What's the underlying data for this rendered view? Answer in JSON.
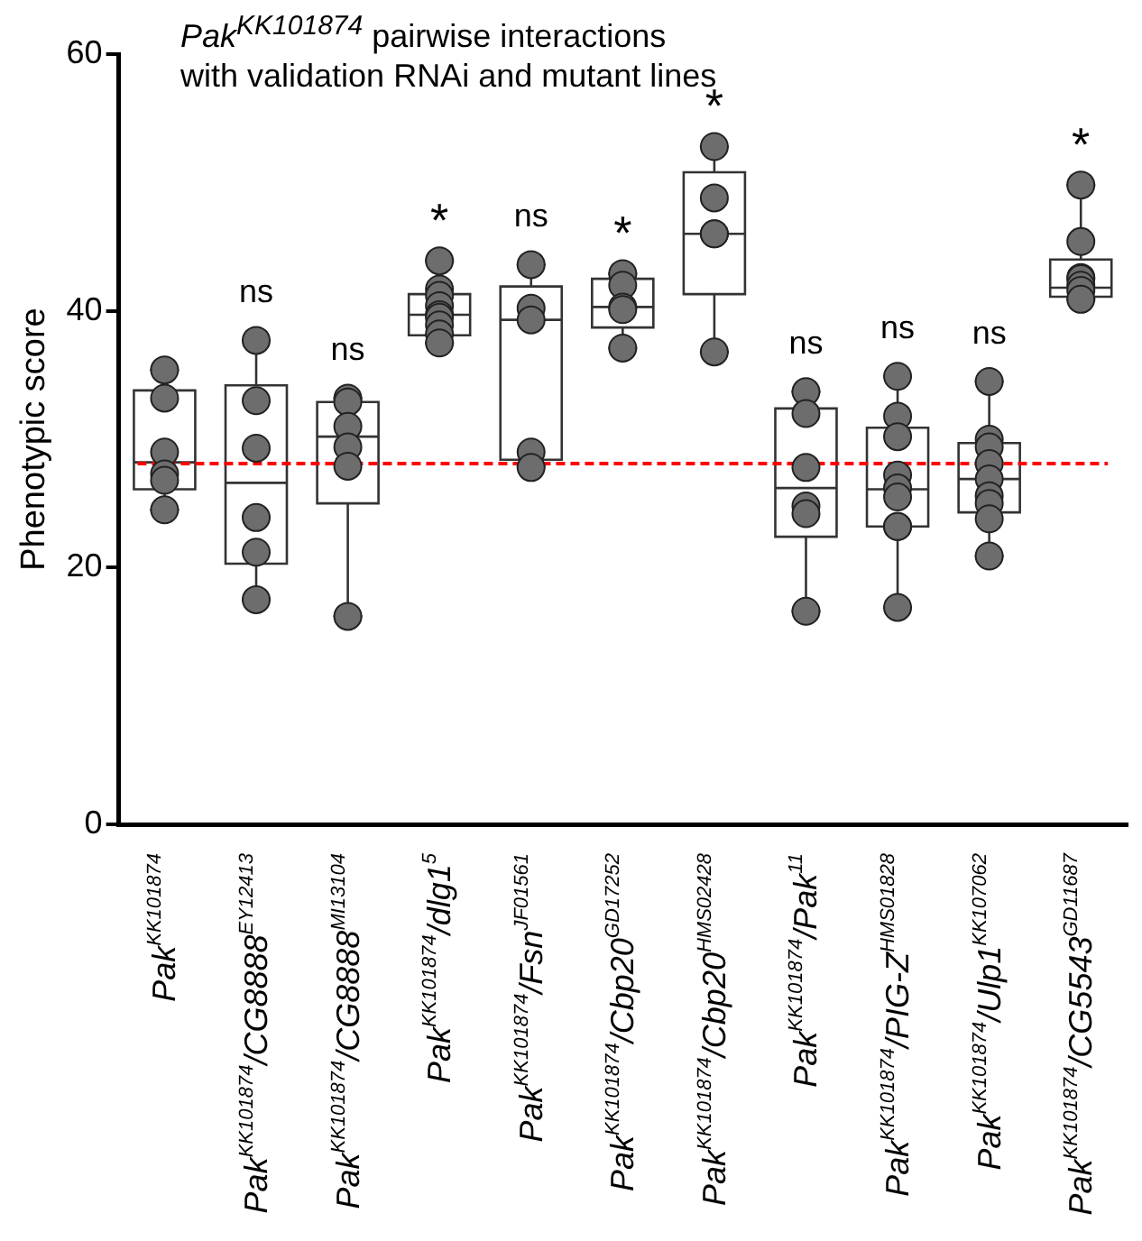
{
  "chart_data": {
    "type": "box",
    "title": "Pak$^{KK101874}$ pairwise interactions\nwith validation RNAi and mutant lines",
    "ylabel": "Phenotypic score",
    "categories": [
      "Pak$^{KK101874}$",
      "Pak$^{KK101874}$/CG8888$^{EY12413}$",
      "Pak$^{KK101874}$/CG8888$^{MI13104}$",
      "Pak$^{KK101874}$/dlg1$^{5}$",
      "Pak$^{KK101874}$/Fsn$^{JF01561}$",
      "Pak$^{KK101874}$/Cbp20$^{GD17252}$",
      "Pak$^{KK101874}$/Cbp20$^{HMS02428}$",
      "Pak$^{KK101874}$/Pak$^{11}$",
      "Pak$^{KK101874}$/PIG-Z$^{HMS01828}$",
      "Pak$^{KK101874}$/Ulp1$^{KK107062}$",
      "Pak$^{KK101874}$/CG5543$^{GD11687}$"
    ],
    "boxes": [
      {
        "low": 24.5,
        "q1": 26.1,
        "median": 28.2,
        "q3": 33.8,
        "high": 35.4
      },
      {
        "low": 17.5,
        "q1": 20.3,
        "median": 26.6,
        "q3": 34.2,
        "high": 37.7
      },
      {
        "low": 16.2,
        "q1": 25.0,
        "median": 30.2,
        "q3": 32.9,
        "high": 33.2
      },
      {
        "low": 37.5,
        "q1": 38.1,
        "median": 39.7,
        "q3": 41.3,
        "high": 43.9
      },
      {
        "low": 27.9,
        "q1": 28.4,
        "median": 39.3,
        "q3": 41.9,
        "high": 43.6
      },
      {
        "low": 37.1,
        "q1": 38.7,
        "median": 40.3,
        "q3": 42.5,
        "high": 42.9
      },
      {
        "low": 36.8,
        "q1": 41.3,
        "median": 46.0,
        "q3": 50.8,
        "high": 52.8
      },
      {
        "low": 16.6,
        "q1": 22.4,
        "median": 26.2,
        "q3": 32.4,
        "high": 33.7
      },
      {
        "low": 16.9,
        "q1": 23.2,
        "median": 26.1,
        "q3": 30.9,
        "high": 34.9
      },
      {
        "low": 20.9,
        "q1": 24.3,
        "median": 26.9,
        "q3": 29.7,
        "high": 34.5
      },
      {
        "low": 40.9,
        "q1": 41.1,
        "median": 41.8,
        "q3": 44.0,
        "high": 49.8
      }
    ],
    "series": [
      {
        "type": "scatter",
        "color": "#6d6d6d",
        "x": [
          "Pak$^{KK101874}$",
          "Pak$^{KK101874}$",
          "Pak$^{KK101874}$",
          "Pak$^{KK101874}$",
          "Pak$^{KK101874}$",
          "Pak$^{KK101874}$",
          "Pak$^{KK101874}$/CG8888$^{EY12413}$",
          "Pak$^{KK101874}$/CG8888$^{EY12413}$",
          "Pak$^{KK101874}$/CG8888$^{EY12413}$",
          "Pak$^{KK101874}$/CG8888$^{EY12413}$",
          "Pak$^{KK101874}$/CG8888$^{EY12413}$",
          "Pak$^{KK101874}$/CG8888$^{EY12413}$",
          "Pak$^{KK101874}$/CG8888$^{MI13104}$",
          "Pak$^{KK101874}$/CG8888$^{MI13104}$",
          "Pak$^{KK101874}$/CG8888$^{MI13104}$",
          "Pak$^{KK101874}$/CG8888$^{MI13104}$",
          "Pak$^{KK101874}$/CG8888$^{MI13104}$",
          "Pak$^{KK101874}$/CG8888$^{MI13104}$",
          "Pak$^{KK101874}$/dlg1$^{5}$",
          "Pak$^{KK101874}$/dlg1$^{5}$",
          "Pak$^{KK101874}$/dlg1$^{5}$",
          "Pak$^{KK101874}$/dlg1$^{5}$",
          "Pak$^{KK101874}$/dlg1$^{5}$",
          "Pak$^{KK101874}$/dlg1$^{5}$",
          "Pak$^{KK101874}$/dlg1$^{5}$",
          "Pak$^{KK101874}$/dlg1$^{5}$",
          "Pak$^{KK101874}$/dlg1$^{5}$",
          "Pak$^{KK101874}$/Fsn$^{JF01561}$",
          "Pak$^{KK101874}$/Fsn$^{JF01561}$",
          "Pak$^{KK101874}$/Fsn$^{JF01561}$",
          "Pak$^{KK101874}$/Fsn$^{JF01561}$",
          "Pak$^{KK101874}$/Fsn$^{JF01561}$",
          "Pak$^{KK101874}$/Cbp20$^{GD17252}$",
          "Pak$^{KK101874}$/Cbp20$^{GD17252}$",
          "Pak$^{KK101874}$/Cbp20$^{GD17252}$",
          "Pak$^{KK101874}$/Cbp20$^{GD17252}$",
          "Pak$^{KK101874}$/Cbp20$^{GD17252}$",
          "Pak$^{KK101874}$/Cbp20$^{HMS02428}$",
          "Pak$^{KK101874}$/Cbp20$^{HMS02428}$",
          "Pak$^{KK101874}$/Cbp20$^{HMS02428}$",
          "Pak$^{KK101874}$/Cbp20$^{HMS02428}$",
          "Pak$^{KK101874}$/Cbp20$^{HMS02428}$",
          "Pak$^{KK101874}$/Pak$^{11}$",
          "Pak$^{KK101874}$/Pak$^{11}$",
          "Pak$^{KK101874}$/Pak$^{11}$",
          "Pak$^{KK101874}$/Pak$^{11}$",
          "Pak$^{KK101874}$/Pak$^{11}$",
          "Pak$^{KK101874}$/Pak$^{11}$",
          "Pak$^{KK101874}$/PIG-Z$^{HMS01828}$",
          "Pak$^{KK101874}$/PIG-Z$^{HMS01828}$",
          "Pak$^{KK101874}$/PIG-Z$^{HMS01828}$",
          "Pak$^{KK101874}$/PIG-Z$^{HMS01828}$",
          "Pak$^{KK101874}$/PIG-Z$^{HMS01828}$",
          "Pak$^{KK101874}$/PIG-Z$^{HMS01828}$",
          "Pak$^{KK101874}$/PIG-Z$^{HMS01828}$",
          "Pak$^{KK101874}$/PIG-Z$^{HMS01828}$",
          "Pak$^{KK101874}$/PIG-Z$^{HMS01828}$",
          "Pak$^{KK101874}$/Ulp1$^{KK107062}$",
          "Pak$^{KK101874}$/Ulp1$^{KK107062}$",
          "Pak$^{KK101874}$/Ulp1$^{KK107062}$",
          "Pak$^{KK101874}$/Ulp1$^{KK107062}$",
          "Pak$^{KK101874}$/Ulp1$^{KK107062}$",
          "Pak$^{KK101874}$/Ulp1$^{KK107062}$",
          "Pak$^{KK101874}$/Ulp1$^{KK107062}$",
          "Pak$^{KK101874}$/Ulp1$^{KK107062}$",
          "Pak$^{KK101874}$/Ulp1$^{KK107062}$",
          "Pak$^{KK101874}$/CG5543$^{GD11687}$",
          "Pak$^{KK101874}$/CG5543$^{GD11687}$",
          "Pak$^{KK101874}$/CG5543$^{GD11687}$",
          "Pak$^{KK101874}$/CG5543$^{GD11687}$",
          "Pak$^{KK101874}$/CG5543$^{GD11687}$",
          "Pak$^{KK101874}$/CG5543$^{GD11687}$",
          "Pak$^{KK101874}$/CG5543$^{GD11687}$"
        ],
        "values": [
          35.4,
          33.2,
          29.0,
          27.3,
          26.8,
          24.5,
          37.7,
          33.0,
          29.3,
          23.9,
          21.2,
          17.5,
          33.2,
          32.9,
          31.0,
          29.4,
          27.9,
          16.2,
          43.9,
          41.7,
          41.2,
          40.4,
          39.7,
          39.5,
          38.9,
          38.2,
          37.5,
          43.6,
          40.2,
          39.3,
          29.0,
          27.8,
          42.9,
          42.0,
          40.3,
          40.1,
          37.1,
          52.8,
          48.8,
          46.0,
          46.0,
          36.8,
          33.7,
          32.0,
          27.8,
          24.8,
          24.2,
          16.6,
          34.9,
          31.8,
          30.2,
          27.2,
          26.2,
          25.5,
          23.2,
          23.2,
          16.9,
          34.5,
          30.0,
          29.4,
          28.1,
          26.9,
          25.6,
          25.0,
          23.8,
          20.9,
          49.8,
          45.4,
          42.6,
          42.5,
          42.0,
          41.6,
          40.9
        ]
      }
    ],
    "marker": "circle",
    "ylim": [
      0,
      60
    ],
    "yticks": [
      0,
      20,
      40,
      60
    ],
    "grid": false,
    "legend": false,
    "ref_lines": [
      {
        "axis": "y",
        "value": 28.1,
        "color": "#ff0000",
        "line_style": "dashed"
      }
    ],
    "annotations": [
      "ns",
      "ns",
      "*",
      "ns",
      "*",
      "*",
      "ns",
      "ns",
      "ns",
      "*"
    ]
  }
}
